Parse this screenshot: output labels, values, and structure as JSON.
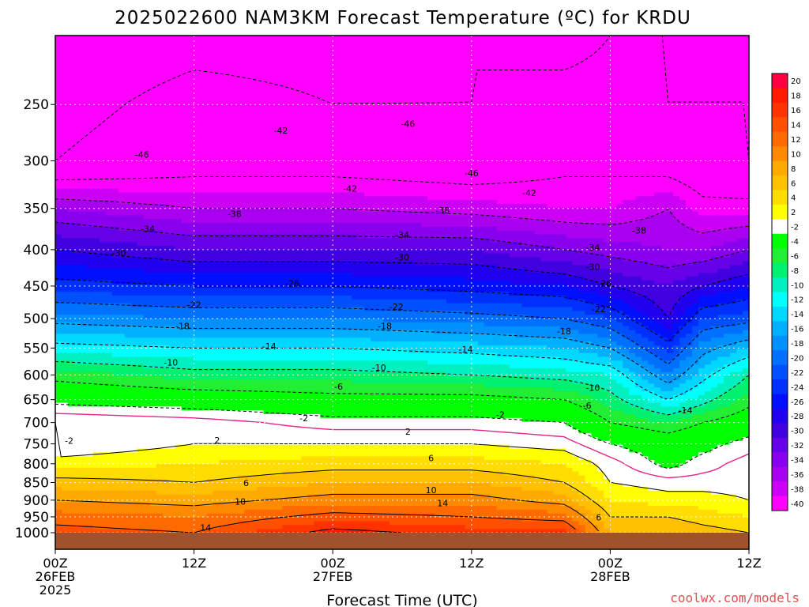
{
  "title": "2025022600 NAM3KM Forecast Temperature (ºC) for KRDU",
  "credit": "coolwx.com/models",
  "colors": {
    "credit": "#e05050",
    "ground": "#a0522d",
    "freezing_line": "#e6248c",
    "contour": "#000000"
  },
  "chart_data": {
    "type": "heatmap",
    "title": "2025022600 NAM3KM Forecast Temperature (ºC) for KRDU",
    "xlabel": "Forecast Time (UTC)",
    "ylabel": "",
    "x_range_hours": [
      0,
      60
    ],
    "y_range_hpa": [
      200,
      1000
    ],
    "y_scale": "log",
    "grid": true,
    "legend": "colorbar-right",
    "x_ticks": [
      {
        "hour": 0,
        "lines": [
          "00Z",
          "26FEB",
          "2025"
        ]
      },
      {
        "hour": 12,
        "lines": [
          "12Z"
        ]
      },
      {
        "hour": 24,
        "lines": [
          "00Z",
          "27FEB"
        ]
      },
      {
        "hour": 36,
        "lines": [
          "12Z"
        ]
      },
      {
        "hour": 48,
        "lines": [
          "00Z",
          "28FEB"
        ]
      },
      {
        "hour": 60,
        "lines": [
          "12Z"
        ]
      }
    ],
    "y_ticks": [
      250,
      300,
      350,
      400,
      450,
      500,
      550,
      600,
      650,
      700,
      750,
      800,
      850,
      900,
      950,
      1000
    ],
    "colorbar": {
      "labels": [
        "20",
        "18",
        "16",
        "14",
        "12",
        "10",
        "8",
        "6",
        "4",
        "2",
        "-2",
        "-4",
        "-6",
        "-8",
        "-10",
        "-12",
        "-14",
        "-16",
        "-18",
        "-20",
        "-22",
        "-24",
        "-26",
        "-28",
        "-30",
        "-32",
        "-34",
        "-36",
        "-38",
        "-40"
      ],
      "colors": [
        "#ff0040",
        "#ff1a00",
        "#ff3300",
        "#ff5000",
        "#ff6a00",
        "#ff8a00",
        "#ffaa00",
        "#ffc000",
        "#ffdd00",
        "#ffff00",
        "#ffffff",
        "#00ff00",
        "#22ee33",
        "#00f070",
        "#00f0c0",
        "#00ffff",
        "#00d8ff",
        "#00b0ff",
        "#0090ff",
        "#0070ff",
        "#0050ff",
        "#0030ff",
        "#0010ff",
        "#2000ee",
        "#4000e0",
        "#6600e8",
        "#8800ee",
        "#aa00f0",
        "#cc00f5",
        "#ff00ff"
      ]
    },
    "temperature_profiles": [
      {
        "hour": 0,
        "levels_hpa": [
          200,
          250,
          300,
          350,
          400,
          450,
          500,
          550,
          600,
          650,
          700,
          750,
          800,
          850,
          900,
          950,
          1000
        ],
        "temps_c": [
          -48,
          -47,
          -46,
          -36,
          -30,
          -25,
          -19,
          -13,
          -7,
          -3,
          2,
          0,
          3,
          7,
          10,
          13,
          15
        ]
      },
      {
        "hour": 12,
        "levels_hpa": [
          200,
          250,
          300,
          350,
          400,
          450,
          500,
          550,
          600,
          650,
          700,
          750,
          800,
          850,
          900,
          950,
          1000
        ],
        "temps_c": [
          -47,
          -45,
          -44,
          -38,
          -32,
          -26,
          -20,
          -14,
          -9,
          -4,
          1,
          2,
          4,
          6,
          9,
          12,
          14
        ]
      },
      {
        "hour": 24,
        "levels_hpa": [
          200,
          250,
          300,
          350,
          400,
          450,
          500,
          550,
          600,
          650,
          700,
          750,
          800,
          850,
          900,
          950,
          1000
        ],
        "temps_c": [
          -47,
          -46,
          -44,
          -38,
          -32,
          -26,
          -20,
          -14,
          -9,
          -5,
          -1,
          2,
          5,
          8,
          11,
          15,
          19
        ]
      },
      {
        "hour": 36,
        "levels_hpa": [
          200,
          250,
          300,
          350,
          400,
          450,
          500,
          550,
          600,
          650,
          700,
          750,
          800,
          850,
          900,
          950,
          1000
        ],
        "temps_c": [
          -46,
          -46,
          -45,
          -39,
          -32,
          -27,
          -21,
          -15,
          -10,
          -5,
          -1,
          2,
          5,
          8,
          11,
          14,
          17
        ]
      },
      {
        "hour": 44,
        "levels_hpa": [
          200,
          250,
          300,
          350,
          400,
          450,
          500,
          550,
          600,
          650,
          700,
          750,
          800,
          850,
          900,
          950,
          1000
        ],
        "temps_c": [
          -47,
          -45,
          -43,
          -40,
          -34,
          -28,
          -22,
          -16,
          -11,
          -6,
          -2,
          1,
          4,
          6,
          9,
          13,
          17
        ]
      },
      {
        "hour": 48,
        "levels_hpa": [
          200,
          250,
          300,
          350,
          400,
          450,
          500,
          550,
          600,
          650,
          700,
          750,
          800,
          850,
          900,
          950,
          1000
        ],
        "temps_c": [
          -46,
          -45,
          -43,
          -40,
          -35,
          -30,
          -24,
          -18,
          -12,
          -9,
          -6,
          -2,
          1,
          2,
          4,
          6,
          8
        ]
      },
      {
        "hour": 53,
        "levels_hpa": [
          200,
          250,
          300,
          350,
          400,
          450,
          500,
          550,
          600,
          650,
          700,
          750,
          800,
          850,
          900,
          950,
          1000
        ],
        "temps_c": [
          -46,
          -46,
          -44,
          -38,
          -36,
          -32,
          -30,
          -25,
          -20,
          -14,
          -8,
          -4,
          -3,
          1,
          3,
          6,
          8
        ]
      },
      {
        "hour": 56,
        "levels_hpa": [
          200,
          250,
          300,
          350,
          400,
          450,
          500,
          550,
          600,
          650,
          700,
          750,
          800,
          850,
          900,
          950,
          1000
        ],
        "temps_c": [
          -46,
          -46,
          -45,
          -41,
          -36,
          -30,
          -24,
          -19,
          -15,
          -11,
          -6,
          -3,
          -1,
          1,
          3,
          5,
          7
        ]
      },
      {
        "hour": 60,
        "levels_hpa": [
          200,
          250,
          300,
          350,
          400,
          450,
          500,
          550,
          600,
          650,
          700,
          750,
          800,
          850,
          900,
          950,
          1000
        ],
        "temps_c": [
          -46,
          -46,
          -46,
          -41,
          -34,
          -28,
          -23,
          -16,
          -10,
          -7,
          -4,
          -1,
          1,
          1,
          2,
          4,
          6
        ]
      }
    ],
    "contour_labels": [
      {
        "text": "-42",
        "hour": 19.5,
        "hpa": 272
      },
      {
        "text": "-46",
        "hour": 30.5,
        "hpa": 266
      },
      {
        "text": "-46",
        "hour": 7.5,
        "hpa": 294
      },
      {
        "text": "-46",
        "hour": 36,
        "hpa": 312
      },
      {
        "text": "-42",
        "hour": 25.5,
        "hpa": 328
      },
      {
        "text": "-42",
        "hour": 41,
        "hpa": 333
      },
      {
        "text": "-38",
        "hour": 15.5,
        "hpa": 356
      },
      {
        "text": "-38",
        "hour": 33.5,
        "hpa": 352
      },
      {
        "text": "-38",
        "hour": 50.5,
        "hpa": 376
      },
      {
        "text": "-34",
        "hour": 8,
        "hpa": 374
      },
      {
        "text": "-34",
        "hour": 30,
        "hpa": 381
      },
      {
        "text": "-34",
        "hour": 46.5,
        "hpa": 397
      },
      {
        "text": "-30",
        "hour": 5.5,
        "hpa": 404
      },
      {
        "text": "-30",
        "hour": 30,
        "hpa": 410
      },
      {
        "text": "-30",
        "hour": 46.5,
        "hpa": 423
      },
      {
        "text": "-26",
        "hour": 20.5,
        "hpa": 446
      },
      {
        "text": "-26",
        "hour": 47.5,
        "hpa": 446
      },
      {
        "text": "-22",
        "hour": 12,
        "hpa": 478
      },
      {
        "text": "-22",
        "hour": 29.5,
        "hpa": 481
      },
      {
        "text": "-22",
        "hour": 47,
        "hpa": 485
      },
      {
        "text": "-18",
        "hour": 11,
        "hpa": 512
      },
      {
        "text": "-18",
        "hour": 28.5,
        "hpa": 512
      },
      {
        "text": "-18",
        "hour": 44,
        "hpa": 521
      },
      {
        "text": "-14",
        "hour": 18.5,
        "hpa": 547
      },
      {
        "text": "-14",
        "hour": 35.5,
        "hpa": 552
      },
      {
        "text": "-14",
        "hour": 54.5,
        "hpa": 673
      },
      {
        "text": "-10",
        "hour": 10,
        "hpa": 576
      },
      {
        "text": "-10",
        "hour": 28,
        "hpa": 586
      },
      {
        "text": "-10",
        "hour": 46.5,
        "hpa": 625
      },
      {
        "text": "-6",
        "hour": 24.5,
        "hpa": 623
      },
      {
        "text": "-6",
        "hour": 46,
        "hpa": 662
      },
      {
        "text": "-2",
        "hour": 21.5,
        "hpa": 690
      },
      {
        "text": "-2",
        "hour": 38.5,
        "hpa": 682
      },
      {
        "text": "-2",
        "hour": 1.2,
        "hpa": 742
      },
      {
        "text": "2",
        "hour": 14,
        "hpa": 741
      },
      {
        "text": "2",
        "hour": 30.5,
        "hpa": 721
      },
      {
        "text": "6",
        "hour": 32.5,
        "hpa": 785
      },
      {
        "text": "6",
        "hour": 16.5,
        "hpa": 851
      },
      {
        "text": "10",
        "hour": 16,
        "hpa": 904
      },
      {
        "text": "10",
        "hour": 32.5,
        "hpa": 871
      },
      {
        "text": "14",
        "hour": 33.5,
        "hpa": 908
      },
      {
        "text": "14",
        "hour": 13,
        "hpa": 983
      },
      {
        "text": "6",
        "hour": 47,
        "hpa": 951
      }
    ]
  }
}
